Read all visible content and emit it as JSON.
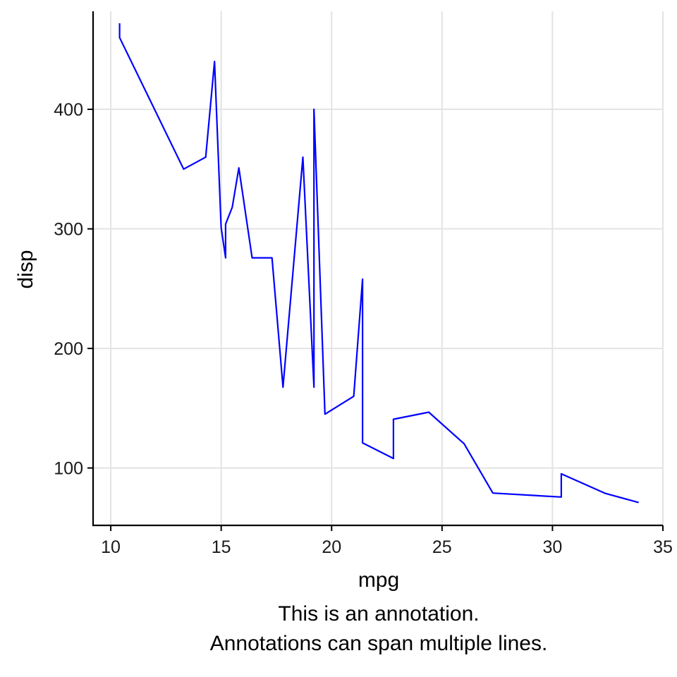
{
  "chart_data": {
    "type": "line",
    "title": "",
    "xlabel": "mpg",
    "ylabel": "disp",
    "xlim": [
      9.2,
      35
    ],
    "ylim": [
      52,
      482
    ],
    "x_ticks": [
      10,
      15,
      20,
      25,
      30,
      35
    ],
    "y_ticks": [
      100,
      200,
      300,
      400
    ],
    "grid": true,
    "legend": "none",
    "series": [
      {
        "color": "#0000ff",
        "points": [
          [
            10.4,
            472
          ],
          [
            10.4,
            460
          ],
          [
            13.3,
            350
          ],
          [
            14.3,
            360
          ],
          [
            14.7,
            440
          ],
          [
            15.0,
            301
          ],
          [
            15.2,
            275.8
          ],
          [
            15.2,
            304
          ],
          [
            15.5,
            318
          ],
          [
            15.8,
            351
          ],
          [
            16.4,
            275.8
          ],
          [
            17.3,
            275.8
          ],
          [
            17.8,
            167.6
          ],
          [
            18.7,
            360
          ],
          [
            19.2,
            167.6
          ],
          [
            19.2,
            400
          ],
          [
            19.7,
            145
          ],
          [
            21.0,
            160
          ],
          [
            21.4,
            258
          ],
          [
            21.4,
            121
          ],
          [
            22.8,
            108
          ],
          [
            22.8,
            140.8
          ],
          [
            24.4,
            146.7
          ],
          [
            26.0,
            120.3
          ],
          [
            27.3,
            79
          ],
          [
            30.4,
            75.7
          ],
          [
            30.4,
            95.1
          ],
          [
            32.4,
            78.7
          ],
          [
            33.9,
            71.1
          ]
        ]
      }
    ],
    "annotation": [
      "This is an annotation.",
      "Annotations can span multiple lines."
    ]
  }
}
